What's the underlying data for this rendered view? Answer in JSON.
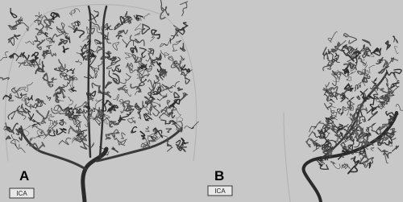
{
  "panels": [
    {
      "label": "A",
      "tag": "ICA"
    },
    {
      "label": "B",
      "tag": "ICA"
    }
  ]
}
